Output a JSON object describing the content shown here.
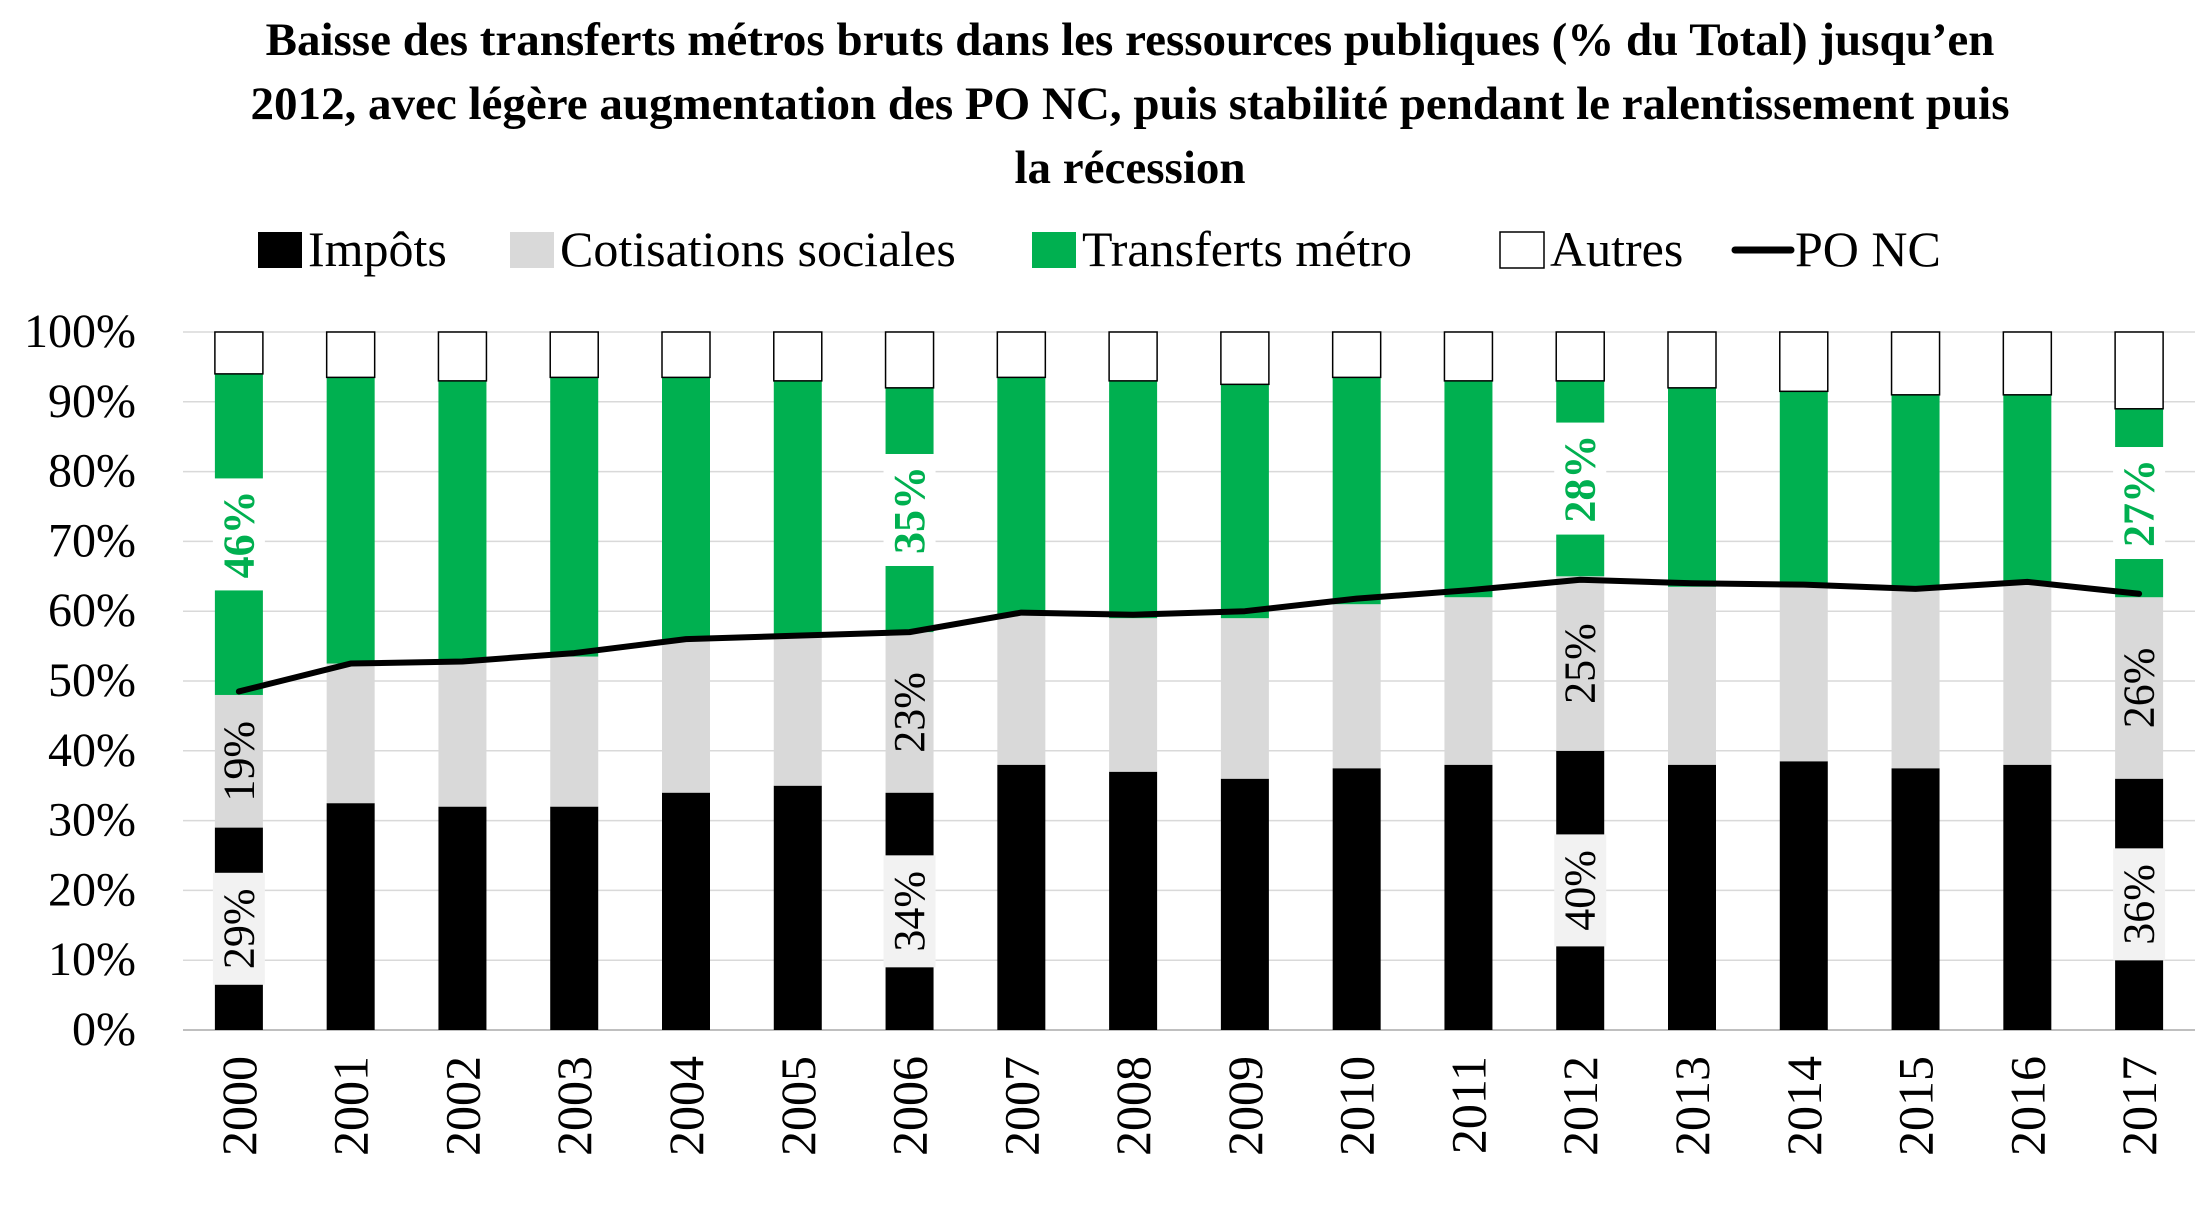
{
  "chart_data": {
    "type": "bar",
    "stacked": true,
    "title": "Baisse des transferts métros bruts dans les ressources publiques (% du Total) jusqu’en 2012, avec légère augmentation des PO NC, puis stabilité pendant le ralentissement puis la récession",
    "xlabel": "",
    "ylabel": "",
    "ylim": [
      0,
      100
    ],
    "yticks": [
      "0%",
      "10%",
      "20%",
      "30%",
      "40%",
      "50%",
      "60%",
      "70%",
      "80%",
      "90%",
      "100%"
    ],
    "grid": true,
    "legend_position": "top",
    "categories": [
      "2000",
      "2001",
      "2002",
      "2003",
      "2004",
      "2005",
      "2006",
      "2007",
      "2008",
      "2009",
      "2010",
      "2011",
      "2012",
      "2013",
      "2014",
      "2015",
      "2016",
      "2017"
    ],
    "series": [
      {
        "name": "Impôts",
        "color": "#000000",
        "stroke": "none",
        "values": [
          29,
          32.5,
          32,
          32,
          34,
          35,
          34,
          38,
          37,
          36,
          37.5,
          38,
          40,
          38,
          38.5,
          37.5,
          38,
          36
        ]
      },
      {
        "name": "Cotisations sociales",
        "color": "#d9d9d9",
        "stroke": "none",
        "values": [
          19,
          20,
          21,
          21.5,
          22,
          21.5,
          23,
          21.5,
          22,
          23,
          23.5,
          24,
          25,
          25.5,
          25.5,
          25.5,
          26,
          26
        ]
      },
      {
        "name": "Transferts métro",
        "color": "#00b050",
        "stroke": "none",
        "values": [
          46,
          41,
          40,
          40,
          37.5,
          36.5,
          35,
          34,
          34,
          33.5,
          32.5,
          31,
          28,
          28.5,
          27.5,
          28,
          27,
          27
        ]
      },
      {
        "name": "Autres",
        "color": "#ffffff",
        "stroke": "#000000",
        "values": [
          6,
          6.5,
          7,
          6.5,
          6.5,
          7,
          8,
          6.5,
          7,
          7.5,
          6.5,
          7,
          7,
          8,
          8.5,
          9,
          9,
          11
        ]
      }
    ],
    "line_series": {
      "name": "PO NC",
      "color": "#000000",
      "values": [
        48.5,
        52.5,
        52.8,
        54,
        56,
        56.5,
        57,
        59.8,
        59.5,
        60,
        61.8,
        63,
        64.5,
        64,
        63.8,
        63.2,
        64.2,
        62.5
      ]
    },
    "data_labels": [
      {
        "category": "2000",
        "series": "Impôts",
        "text": "29%"
      },
      {
        "category": "2000",
        "series": "Cotisations sociales",
        "text": "19%"
      },
      {
        "category": "2000",
        "series": "Transferts métro",
        "text": "46%"
      },
      {
        "category": "2006",
        "series": "Impôts",
        "text": "34%"
      },
      {
        "category": "2006",
        "series": "Cotisations sociales",
        "text": "23%"
      },
      {
        "category": "2006",
        "series": "Transferts métro",
        "text": "35%"
      },
      {
        "category": "2012",
        "series": "Impôts",
        "text": "40%"
      },
      {
        "category": "2012",
        "series": "Cotisations sociales",
        "text": "25%"
      },
      {
        "category": "2012",
        "series": "Transferts métro",
        "text": "28%"
      },
      {
        "category": "2017",
        "series": "Impôts",
        "text": "36%"
      },
      {
        "category": "2017",
        "series": "Cotisations sociales",
        "text": "26%"
      },
      {
        "category": "2017",
        "series": "Transferts métro",
        "text": "27%"
      }
    ]
  }
}
